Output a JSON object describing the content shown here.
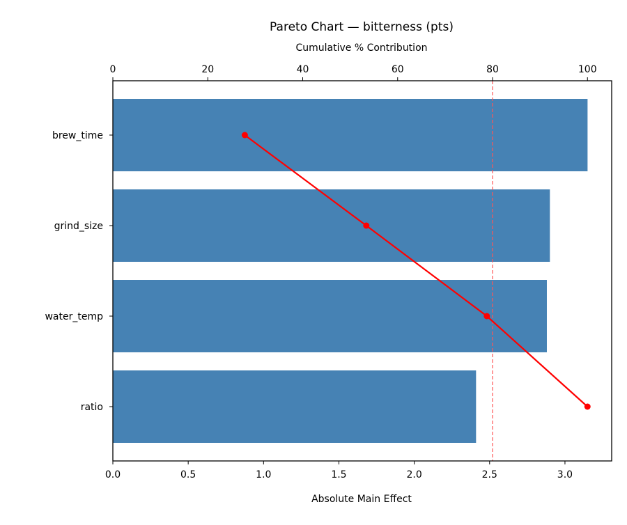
{
  "chart_data": {
    "type": "bar",
    "orientation": "horizontal",
    "title": "Pareto Chart — bitterness (pts)",
    "xlabel": "Absolute Main Effect",
    "ylabel": "",
    "secondary_xlabel": "Cumulative % Contribution",
    "categories": [
      "brew_time",
      "grind_size",
      "water_temp",
      "ratio"
    ],
    "values": [
      3.15,
      2.9,
      2.88,
      2.41
    ],
    "cumulative_percent": [
      27.8,
      53.4,
      78.8,
      100.0
    ],
    "xlim": [
      0,
      3.31
    ],
    "x_ticks": [
      "0.0",
      "0.5",
      "1.0",
      "1.5",
      "2.0",
      "2.5",
      "3.0"
    ],
    "secondary_xlim": [
      0,
      105.1
    ],
    "secondary_ticks": [
      "0",
      "20",
      "40",
      "60",
      "80",
      "100"
    ],
    "threshold_percent": 80,
    "grid": false,
    "legend": null,
    "colors": {
      "bar": "#4682b4",
      "line": "#ff0000",
      "threshold": "#ff5555"
    }
  }
}
